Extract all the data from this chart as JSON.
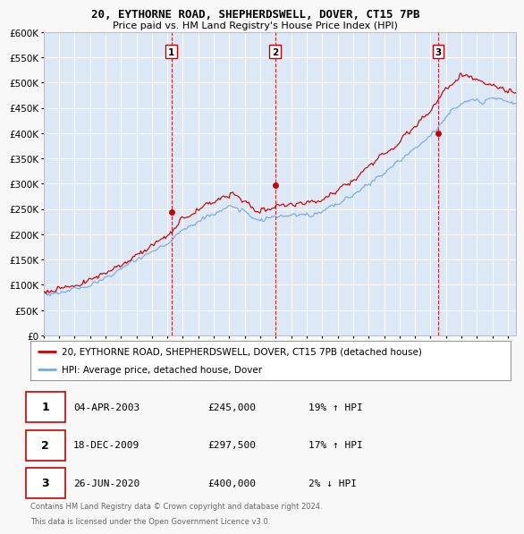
{
  "title1": "20, EYTHORNE ROAD, SHEPHERDSWELL, DOVER, CT15 7PB",
  "title2": "Price paid vs. HM Land Registry's House Price Index (HPI)",
  "bg_color": "#f8f8f8",
  "plot_bg": "#dce8f5",
  "transactions": [
    {
      "label": 1,
      "date_str": "04-APR-2003",
      "price": 245000,
      "hpi_pct": "19% ↑ HPI",
      "x": 2003.25
    },
    {
      "label": 2,
      "date_str": "18-DEC-2009",
      "price": 297500,
      "hpi_pct": "17% ↑ HPI",
      "x": 2009.96
    },
    {
      "label": 3,
      "date_str": "26-JUN-2020",
      "price": 400000,
      "hpi_pct": "2% ↓ HPI",
      "x": 2020.49
    }
  ],
  "legend_line1": "20, EYTHORNE ROAD, SHEPHERDSWELL, DOVER, CT15 7PB (detached house)",
  "legend_line2": "HPI: Average price, detached house, Dover",
  "footer1": "Contains HM Land Registry data © Crown copyright and database right 2024.",
  "footer2": "This data is licensed under the Open Government Licence v3.0.",
  "red_color": "#cc0000",
  "blue_color": "#7aaadd",
  "vline_color": "#cc0000",
  "ylim": [
    0,
    600000
  ],
  "yticks": [
    0,
    50000,
    100000,
    150000,
    200000,
    250000,
    300000,
    350000,
    400000,
    450000,
    500000,
    550000,
    600000
  ],
  "xstart": 1995.0,
  "xend": 2025.5
}
